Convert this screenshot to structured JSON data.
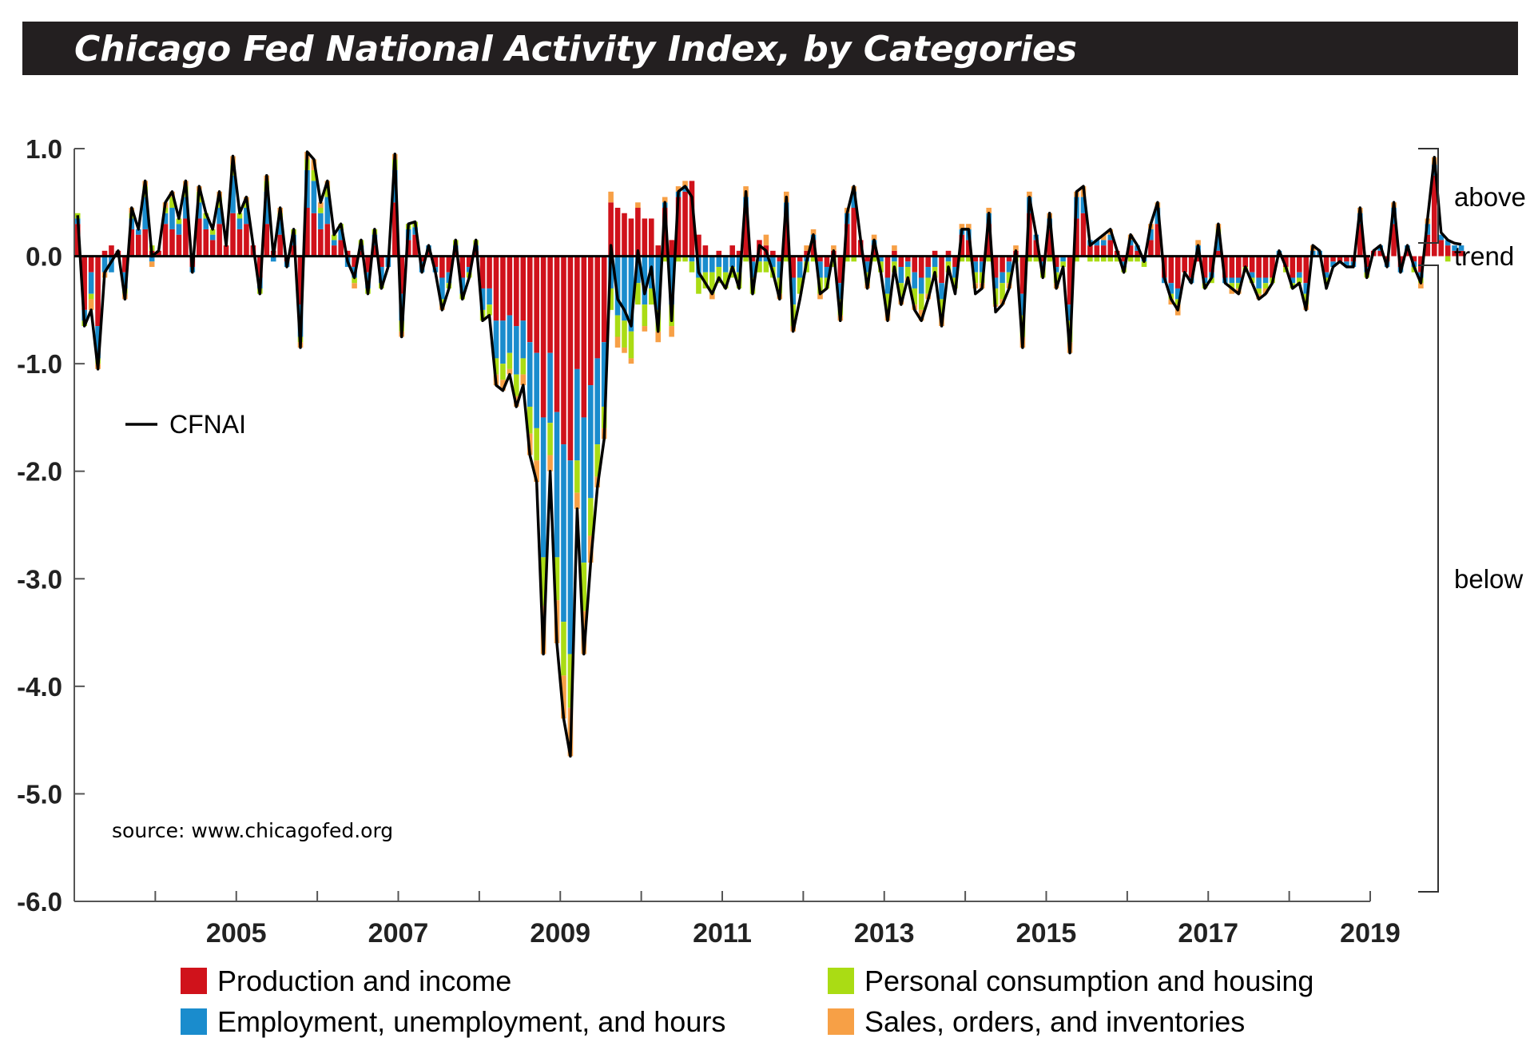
{
  "chart_data": {
    "type": "bar",
    "stacked": true,
    "title": "Chicago Fed National Activity Index, by Categories",
    "source_note": "source: www.chicagofed.org",
    "y_ticks": [
      "1.0",
      "0.0",
      "-1.0",
      "-2.0",
      "-3.0",
      "-4.0",
      "-5.0",
      "-6.0"
    ],
    "x_ticks": [
      "2005",
      "2007",
      "2009",
      "2011",
      "2013",
      "2015",
      "2017",
      "2019"
    ],
    "ylim": [
      -6,
      1
    ],
    "xlim": [
      2003.0,
      2019.0
    ],
    "grid": false,
    "side_labels": {
      "above": "above",
      "trend": "trend",
      "below": "below"
    },
    "line_series_name": "CFNAI",
    "legend_position": "bottom",
    "colors": {
      "production": "#d0121b",
      "employment": "#1a8ccd",
      "consumption": "#aadc14",
      "sales": "#f7a046",
      "line": "#000000",
      "title_bg": "#231f20",
      "title_fg": "#ffffff"
    },
    "series": [
      {
        "key": "production",
        "name": "Production and income"
      },
      {
        "key": "employment",
        "name": "Employment, unemployment, and hours"
      },
      {
        "key": "consumption",
        "name": "Personal consumption and housing"
      },
      {
        "key": "sales",
        "name": "Sales, orders, and inventories"
      }
    ],
    "start": "2003-01",
    "frequency": "monthly",
    "cfnai": [
      0.38,
      -0.65,
      -0.5,
      -1.05,
      -0.15,
      -0.05,
      0.05,
      -0.4,
      0.45,
      0.25,
      0.7,
      0.0,
      0.05,
      0.5,
      0.6,
      0.35,
      0.7,
      -0.15,
      0.65,
      0.4,
      0.25,
      0.6,
      0.1,
      0.93,
      0.4,
      0.55,
      0.1,
      -0.35,
      0.75,
      0.0,
      0.45,
      -0.1,
      0.25,
      -0.85,
      0.97,
      0.9,
      0.5,
      0.7,
      0.2,
      0.3,
      -0.05,
      -0.2,
      0.15,
      -0.35,
      0.25,
      -0.3,
      -0.1,
      0.95,
      -0.75,
      0.3,
      0.32,
      -0.15,
      0.1,
      -0.15,
      -0.5,
      -0.3,
      0.15,
      -0.4,
      -0.2,
      0.15,
      -0.6,
      -0.55,
      -1.2,
      -1.25,
      -1.1,
      -1.4,
      -1.2,
      -1.85,
      -2.1,
      -3.7,
      -2.0,
      -3.6,
      -4.3,
      -4.65,
      -2.35,
      -3.7,
      -2.85,
      -2.15,
      -1.7,
      0.1,
      -0.4,
      -0.5,
      -0.65,
      0.05,
      -0.35,
      -0.1,
      -0.7,
      0.5,
      -0.6,
      0.6,
      0.65,
      0.55,
      -0.15,
      -0.25,
      -0.35,
      -0.2,
      -0.3,
      -0.1,
      -0.3,
      0.6,
      -0.35,
      0.1,
      0.05,
      -0.15,
      -0.4,
      0.55,
      -0.7,
      -0.4,
      -0.05,
      0.2,
      -0.35,
      -0.3,
      0.05,
      -0.6,
      0.4,
      0.65,
      0.15,
      -0.3,
      0.15,
      -0.15,
      -0.6,
      -0.1,
      -0.45,
      -0.2,
      -0.5,
      -0.6,
      -0.4,
      -0.15,
      -0.65,
      -0.1,
      -0.35,
      0.25,
      0.25,
      -0.35,
      -0.3,
      0.4,
      -0.52,
      -0.45,
      -0.3,
      0.05,
      -0.85,
      0.55,
      0.2,
      -0.2,
      0.4,
      -0.3,
      -0.1,
      -0.9,
      0.6,
      0.65,
      0.1,
      0.15,
      0.2,
      0.25,
      0.05,
      -0.15,
      0.2,
      0.1,
      -0.05,
      0.3,
      0.5,
      -0.2,
      -0.4,
      -0.5,
      -0.15,
      -0.25,
      0.1,
      -0.3,
      -0.2,
      0.3,
      -0.25,
      -0.3,
      -0.35,
      -0.1,
      -0.25,
      -0.4,
      -0.35,
      -0.25,
      0.05,
      -0.1,
      -0.3,
      -0.25,
      -0.5,
      0.1,
      0.05,
      -0.3,
      -0.1,
      -0.05,
      -0.1,
      -0.1,
      0.45,
      -0.2,
      0.05,
      0.1,
      -0.1,
      0.5,
      -0.15,
      0.1,
      -0.1,
      -0.25,
      0.35,
      0.92,
      0.22,
      0.15,
      0.12,
      0.11
    ],
    "production": [
      0.3,
      -0.5,
      -0.15,
      -0.65,
      0.05,
      0.1,
      0.05,
      -0.15,
      0.25,
      0.2,
      0.25,
      0.05,
      0.05,
      0.3,
      0.25,
      0.2,
      0.35,
      -0.1,
      0.35,
      0.25,
      0.15,
      0.3,
      0.1,
      0.4,
      0.25,
      0.3,
      0.1,
      -0.2,
      0.3,
      0.05,
      0.2,
      -0.05,
      0.1,
      -0.45,
      0.45,
      0.4,
      0.25,
      0.3,
      0.1,
      0.15,
      0.05,
      -0.1,
      0.05,
      -0.15,
      0.1,
      -0.1,
      0.0,
      0.5,
      -0.35,
      0.15,
      0.2,
      -0.05,
      0.05,
      -0.1,
      -0.2,
      -0.15,
      0.05,
      -0.2,
      -0.1,
      0.05,
      -0.3,
      -0.3,
      -0.6,
      -0.6,
      -0.55,
      -0.65,
      -0.6,
      -0.8,
      -0.9,
      -1.5,
      -0.9,
      -1.45,
      -1.75,
      -1.9,
      -1.05,
      -1.5,
      -1.2,
      -0.95,
      -0.8,
      0.5,
      0.45,
      0.4,
      0.35,
      0.45,
      0.35,
      0.35,
      0.1,
      0.45,
      0.15,
      0.55,
      0.6,
      0.7,
      0.2,
      0.1,
      0.0,
      0.05,
      0.0,
      0.1,
      0.05,
      0.45,
      -0.05,
      0.15,
      0.1,
      0.05,
      -0.05,
      0.35,
      -0.2,
      -0.05,
      0.05,
      0.15,
      -0.05,
      -0.1,
      0.05,
      -0.25,
      0.3,
      0.45,
      0.15,
      -0.05,
      0.1,
      0.0,
      -0.2,
      0.05,
      -0.1,
      -0.05,
      -0.15,
      -0.2,
      -0.1,
      0.05,
      -0.25,
      0.05,
      -0.1,
      0.2,
      0.15,
      -0.05,
      -0.05,
      0.3,
      -0.2,
      -0.15,
      -0.05,
      0.05,
      -0.35,
      0.4,
      0.15,
      -0.05,
      0.25,
      -0.1,
      0.0,
      -0.45,
      0.35,
      0.4,
      0.1,
      0.1,
      0.1,
      0.15,
      0.05,
      -0.05,
      0.1,
      0.05,
      0.0,
      0.15,
      0.3,
      -0.2,
      -0.25,
      -0.3,
      -0.15,
      -0.2,
      -0.05,
      -0.2,
      -0.15,
      0.05,
      -0.2,
      -0.2,
      -0.2,
      -0.1,
      -0.15,
      -0.2,
      -0.2,
      -0.2,
      0.0,
      -0.1,
      -0.2,
      -0.15,
      -0.25,
      0.0,
      0.0,
      -0.15,
      -0.05,
      -0.05,
      -0.05,
      -0.05,
      0.3,
      -0.1,
      0.05,
      0.05,
      -0.05,
      0.3,
      -0.1,
      0.05,
      -0.05,
      -0.15,
      0.2,
      0.75,
      0.15,
      0.1,
      0.05,
      0.05
    ],
    "employment": [
      0.05,
      -0.1,
      -0.2,
      -0.3,
      -0.15,
      -0.15,
      0.0,
      -0.15,
      0.1,
      0.05,
      0.3,
      -0.05,
      0.0,
      0.1,
      0.2,
      0.1,
      0.2,
      -0.05,
      0.15,
      0.1,
      0.05,
      0.15,
      0.0,
      0.35,
      0.1,
      0.15,
      0.0,
      -0.1,
      0.3,
      -0.05,
      0.15,
      -0.05,
      0.1,
      -0.3,
      0.35,
      0.3,
      0.15,
      0.25,
      0.05,
      0.1,
      -0.1,
      -0.1,
      0.05,
      -0.15,
      0.1,
      -0.15,
      -0.1,
      0.3,
      -0.25,
      0.1,
      0.07,
      -0.1,
      0.05,
      -0.05,
      -0.2,
      -0.1,
      0.05,
      -0.15,
      -0.05,
      0.05,
      -0.2,
      -0.15,
      -0.35,
      -0.4,
      -0.35,
      -0.45,
      -0.35,
      -0.6,
      -0.7,
      -1.3,
      -0.65,
      -1.35,
      -1.65,
      -1.8,
      -0.85,
      -1.35,
      -1.05,
      -0.8,
      -0.6,
      -0.3,
      -0.55,
      -0.6,
      -0.7,
      -0.25,
      -0.45,
      -0.3,
      -0.5,
      0.05,
      -0.45,
      0.05,
      0.05,
      -0.05,
      -0.2,
      -0.15,
      -0.15,
      -0.1,
      -0.15,
      -0.1,
      -0.15,
      0.1,
      -0.15,
      -0.05,
      -0.05,
      -0.1,
      -0.15,
      0.15,
      -0.25,
      -0.15,
      -0.05,
      0.05,
      -0.15,
      -0.1,
      0.0,
      -0.15,
      0.1,
      0.15,
      0.0,
      -0.1,
      0.05,
      -0.05,
      -0.15,
      -0.05,
      -0.15,
      -0.05,
      -0.15,
      -0.15,
      -0.1,
      -0.1,
      -0.15,
      -0.05,
      -0.1,
      0.05,
      0.1,
      -0.1,
      -0.1,
      0.1,
      -0.1,
      -0.1,
      -0.1,
      0.0,
      -0.2,
      0.15,
      0.05,
      -0.05,
      0.1,
      -0.05,
      -0.05,
      -0.15,
      0.2,
      0.15,
      0.05,
      0.05,
      0.05,
      0.05,
      0.0,
      -0.05,
      0.05,
      0.05,
      -0.05,
      0.1,
      0.15,
      -0.05,
      -0.1,
      -0.1,
      0.0,
      -0.05,
      0.1,
      -0.05,
      -0.05,
      0.15,
      -0.05,
      -0.05,
      -0.05,
      0.0,
      -0.05,
      -0.1,
      -0.05,
      0.0,
      0.05,
      0.0,
      -0.05,
      -0.05,
      -0.1,
      0.05,
      0.05,
      -0.05,
      -0.05,
      0.0,
      -0.05,
      -0.05,
      0.1,
      -0.05,
      0.0,
      0.05,
      -0.05,
      0.15,
      -0.05,
      0.05,
      -0.05,
      -0.05,
      0.1,
      0.1,
      0.05,
      0.05,
      0.05,
      0.05
    ],
    "consumption": [
      0.05,
      -0.05,
      -0.05,
      -0.05,
      0.0,
      0.0,
      0.0,
      -0.05,
      0.05,
      0.0,
      0.1,
      0.05,
      0.0,
      0.05,
      0.1,
      0.05,
      0.1,
      0.0,
      0.1,
      0.05,
      0.05,
      0.1,
      0.0,
      0.1,
      0.05,
      0.05,
      0.0,
      -0.05,
      0.1,
      0.0,
      0.05,
      0.0,
      0.05,
      -0.05,
      0.1,
      0.1,
      0.05,
      0.1,
      0.05,
      0.05,
      0.0,
      -0.05,
      0.05,
      -0.05,
      0.05,
      -0.05,
      0.0,
      0.1,
      -0.1,
      0.05,
      0.05,
      0.0,
      0.0,
      0.0,
      -0.05,
      -0.05,
      0.05,
      -0.05,
      -0.05,
      0.05,
      -0.1,
      -0.1,
      -0.15,
      -0.15,
      -0.15,
      -0.2,
      -0.15,
      -0.25,
      -0.3,
      -0.45,
      -0.3,
      -0.4,
      -0.5,
      -0.5,
      -0.3,
      -0.45,
      -0.35,
      -0.3,
      -0.2,
      -0.2,
      -0.2,
      -0.25,
      -0.25,
      -0.2,
      -0.2,
      -0.15,
      -0.2,
      -0.05,
      -0.2,
      -0.05,
      -0.05,
      -0.1,
      -0.15,
      -0.15,
      -0.2,
      -0.15,
      -0.15,
      -0.1,
      -0.15,
      -0.05,
      -0.15,
      -0.1,
      -0.1,
      -0.1,
      -0.15,
      -0.05,
      -0.2,
      -0.15,
      -0.1,
      -0.05,
      -0.15,
      -0.1,
      -0.1,
      -0.15,
      -0.05,
      -0.05,
      0.0,
      -0.1,
      -0.05,
      -0.1,
      -0.15,
      -0.1,
      -0.15,
      -0.1,
      -0.15,
      -0.15,
      -0.15,
      -0.1,
      -0.15,
      -0.1,
      -0.1,
      -0.05,
      -0.05,
      -0.1,
      -0.1,
      -0.05,
      -0.15,
      -0.15,
      -0.1,
      -0.05,
      -0.2,
      -0.05,
      -0.05,
      -0.1,
      -0.05,
      -0.1,
      -0.05,
      -0.2,
      -0.05,
      0.0,
      -0.05,
      -0.05,
      -0.05,
      -0.05,
      -0.05,
      -0.05,
      -0.05,
      -0.05,
      -0.05,
      0.0,
      0.0,
      0.0,
      -0.05,
      -0.05,
      0.0,
      0.0,
      0.0,
      -0.05,
      -0.05,
      0.05,
      0.0,
      -0.05,
      -0.05,
      -0.05,
      -0.05,
      -0.05,
      -0.05,
      -0.05,
      0.0,
      -0.05,
      -0.05,
      -0.05,
      -0.1,
      0.0,
      0.0,
      -0.05,
      0.0,
      0.0,
      0.0,
      0.0,
      0.0,
      -0.05,
      0.0,
      0.0,
      0.0,
      0.0,
      0.0,
      0.0,
      -0.05,
      -0.05,
      0.0,
      0.0,
      0.0,
      -0.05,
      0.0,
      0.0
    ],
    "sales": [
      0.0,
      0.0,
      -0.1,
      -0.05,
      -0.05,
      0.0,
      0.0,
      -0.05,
      0.05,
      0.0,
      0.05,
      -0.05,
      0.0,
      0.05,
      0.05,
      0.0,
      0.05,
      0.0,
      0.05,
      0.0,
      0.0,
      0.05,
      0.0,
      0.08,
      0.0,
      0.05,
      0.0,
      0.0,
      0.05,
      0.0,
      0.05,
      0.0,
      0.0,
      -0.05,
      0.07,
      0.1,
      0.05,
      0.05,
      0.0,
      0.0,
      0.0,
      -0.05,
      0.0,
      0.0,
      0.0,
      0.0,
      0.0,
      0.05,
      -0.05,
      0.0,
      0.0,
      0.0,
      0.0,
      0.0,
      -0.05,
      0.0,
      0.0,
      0.0,
      0.0,
      0.0,
      0.0,
      0.0,
      -0.1,
      -0.1,
      -0.05,
      -0.1,
      -0.1,
      -0.2,
      -0.2,
      -0.45,
      -0.15,
      -0.4,
      -0.4,
      -0.45,
      -0.15,
      -0.4,
      -0.25,
      -0.1,
      -0.1,
      0.1,
      -0.1,
      -0.05,
      -0.05,
      0.05,
      -0.05,
      0.0,
      -0.1,
      0.05,
      -0.1,
      0.05,
      0.05,
      0.0,
      0.0,
      0.0,
      -0.05,
      0.0,
      0.0,
      0.0,
      0.0,
      0.1,
      0.0,
      0.0,
      0.1,
      0.0,
      -0.05,
      0.1,
      -0.05,
      0.0,
      0.05,
      0.05,
      -0.05,
      0.0,
      0.05,
      -0.05,
      0.05,
      0.05,
      0.0,
      -0.05,
      0.05,
      0.0,
      -0.1,
      0.05,
      -0.05,
      -0.05,
      -0.05,
      -0.1,
      -0.05,
      0.0,
      -0.1,
      0.0,
      0.0,
      0.05,
      0.05,
      -0.05,
      -0.05,
      0.05,
      -0.02,
      -0.05,
      -0.05,
      0.05,
      -0.1,
      0.05,
      0.0,
      0.0,
      0.05,
      -0.05,
      0.0,
      -0.1,
      0.05,
      0.1,
      0.0,
      0.0,
      0.05,
      0.05,
      0.0,
      0.0,
      0.05,
      0.0,
      0.0,
      0.05,
      0.05,
      0.0,
      -0.05,
      -0.1,
      0.0,
      0.0,
      0.05,
      0.0,
      0.0,
      0.05,
      0.0,
      -0.05,
      -0.05,
      0.0,
      0.0,
      -0.05,
      -0.05,
      0.0,
      0.0,
      0.0,
      0.0,
      0.0,
      -0.05,
      0.05,
      0.0,
      0.0,
      0.0,
      0.0,
      0.0,
      0.0,
      0.05,
      0.0,
      0.0,
      0.0,
      0.0,
      0.05,
      0.0,
      0.0,
      0.0,
      -0.05,
      0.05,
      0.07,
      0.0,
      0.0,
      0.0,
      0.0
    ]
  }
}
